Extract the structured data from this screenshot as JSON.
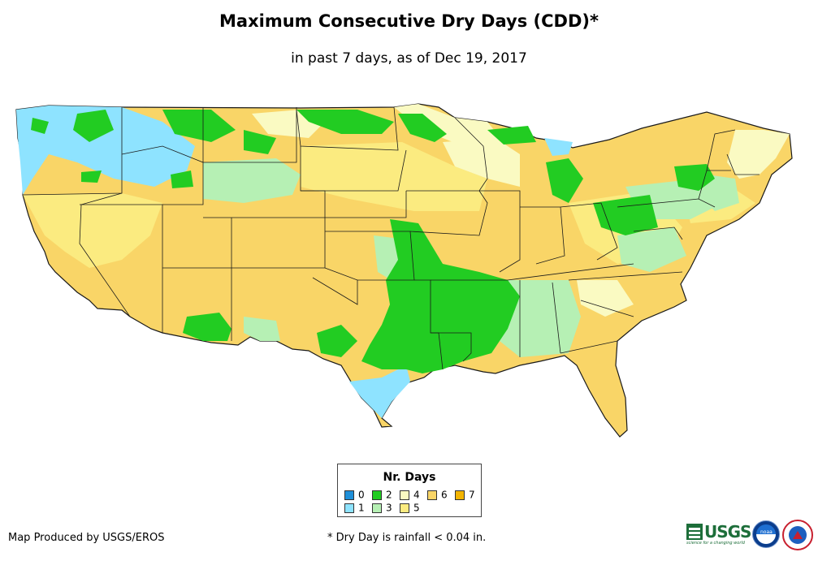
{
  "title": "Maximum Consecutive Dry Days (CDD)*",
  "subtitle": "in past 7 days, as of Dec 19, 2017",
  "legend": {
    "title": "Nr. Days",
    "items": [
      {
        "label": "0",
        "color": "#1f8fd8"
      },
      {
        "label": "1",
        "color": "#8ee3ff"
      },
      {
        "label": "2",
        "color": "#22cc22"
      },
      {
        "label": "3",
        "color": "#b6f0b4"
      },
      {
        "label": "4",
        "color": "#fafac2"
      },
      {
        "label": "5",
        "color": "#fbeb80"
      },
      {
        "label": "6",
        "color": "#f9d567"
      },
      {
        "label": "7",
        "color": "#f3b400"
      }
    ]
  },
  "credit": "Map Produced by USGS/EROS",
  "footnote": "* Dry Day is rainfall < 0.04 in.",
  "logos": {
    "usgs": "USGS",
    "usgs_tagline": "science for a changing world",
    "noaa": "noaa"
  },
  "map": {
    "border_color": "#1a1a1a",
    "background": "#ffffff"
  }
}
